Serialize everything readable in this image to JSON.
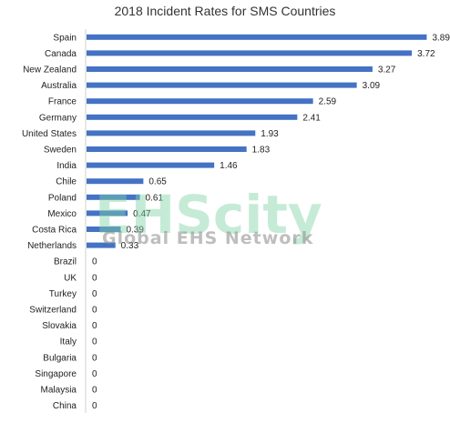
{
  "chart_data": {
    "type": "bar",
    "orientation": "horizontal",
    "title": "2018 Incident Rates for SMS Countries",
    "categories": [
      "Spain",
      "Canada",
      "New Zealand",
      "Australia",
      "France",
      "Germany",
      "United States",
      "Sweden",
      "India",
      "Chile",
      "Poland",
      "Mexico",
      "Costa Rica",
      "Netherlands",
      "Brazil",
      "UK",
      "Turkey",
      "Switzerland",
      "Slovakia",
      "Italy",
      "Bulgaria",
      "Singapore",
      "Malaysia",
      "China"
    ],
    "values": [
      3.89,
      3.72,
      3.27,
      3.09,
      2.59,
      2.41,
      1.93,
      1.83,
      1.46,
      0.65,
      0.61,
      0.47,
      0.39,
      0.33,
      0,
      0,
      0,
      0,
      0,
      0,
      0,
      0,
      0,
      0
    ],
    "value_labels": [
      "3.89",
      "3.72",
      "3.27",
      "3.09",
      "2.59",
      "2.41",
      "1.93",
      "1.83",
      "1.46",
      "0.65",
      "0.61",
      "0.47",
      "0.39",
      "0.33",
      "0",
      "0",
      "0",
      "0",
      "0",
      "0",
      "0",
      "0",
      "0",
      "0"
    ],
    "xlim": [
      0,
      4.0
    ],
    "bar_color": "#4472c4",
    "grid": false,
    "data_labels": true
  },
  "watermark": {
    "brand": "EHScity",
    "tagline": "Global EHS Network"
  }
}
